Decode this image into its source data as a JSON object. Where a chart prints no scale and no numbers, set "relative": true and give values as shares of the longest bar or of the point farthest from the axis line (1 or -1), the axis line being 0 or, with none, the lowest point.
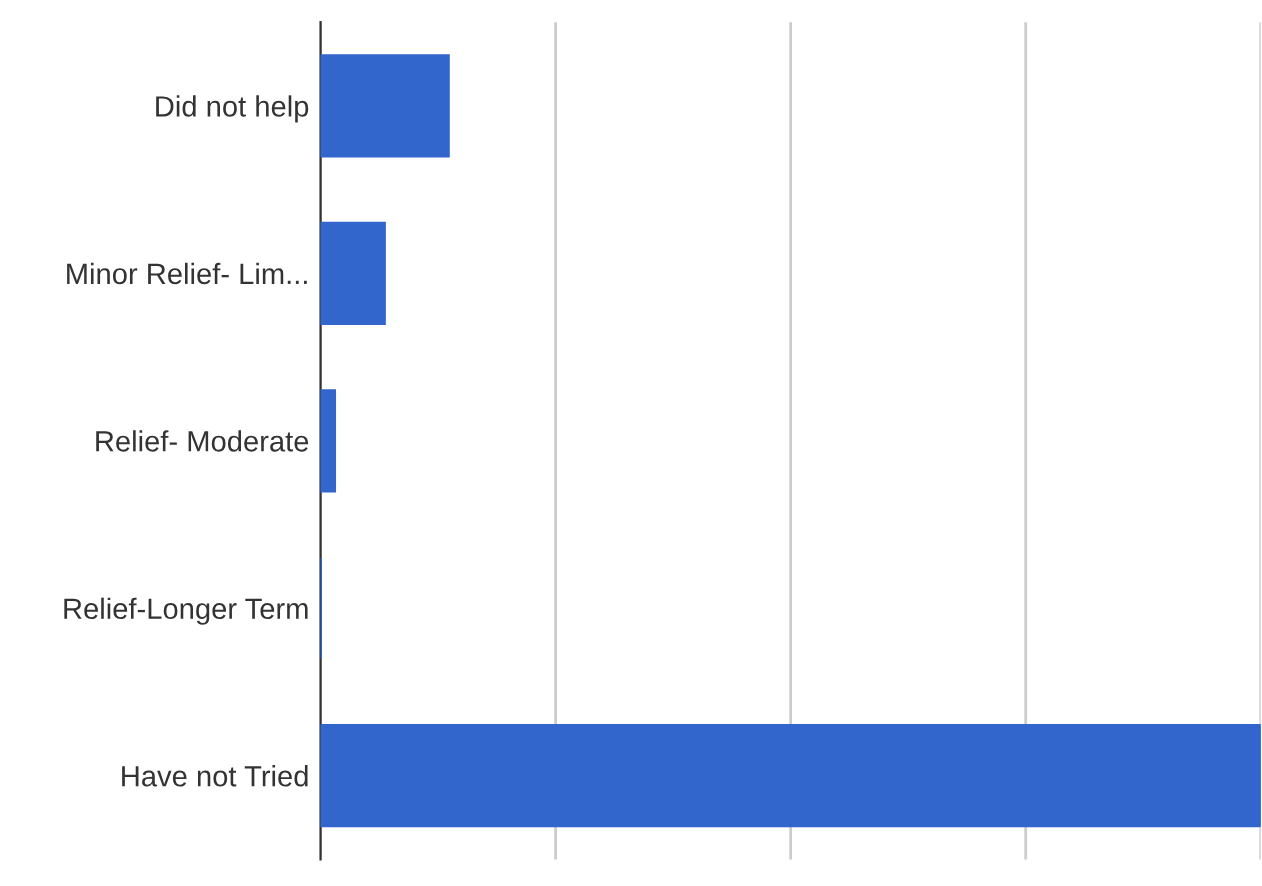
{
  "chart_data": {
    "type": "bar",
    "orientation": "horizontal",
    "relative": true,
    "categories": [
      "Did not help",
      "Minor Relief- Lim...",
      "Relief- Moderate",
      "Relief-Longer Term",
      "Have not Tried"
    ],
    "values": [
      0.136,
      0.068,
      0.015,
      0,
      1
    ],
    "color": "#3366cc",
    "grid": "x",
    "legend": false
  }
}
